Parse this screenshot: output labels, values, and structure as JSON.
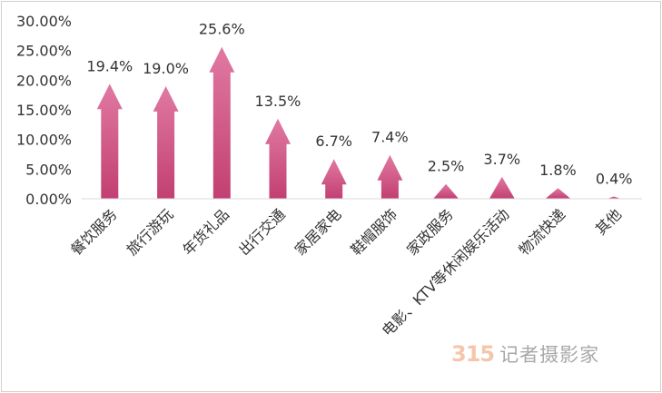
{
  "chart_data": {
    "type": "bar",
    "title": "",
    "xlabel": "",
    "ylabel": "",
    "categories": [
      "餐饮服务",
      "旅行游玩",
      "年货礼品",
      "出行交通",
      "家居家电",
      "鞋帽服饰",
      "家政服务",
      "电影、KTV等休闲娱乐活动",
      "物流快递",
      "其他"
    ],
    "values": [
      19.4,
      19.0,
      25.6,
      13.5,
      6.7,
      7.4,
      2.5,
      3.7,
      1.8,
      0.4
    ],
    "data_labels": [
      "19.4%",
      "19.0%",
      "25.6%",
      "13.5%",
      "6.7%",
      "7.4%",
      "2.5%",
      "3.7%",
      "1.8%",
      "0.4%"
    ],
    "ylim": [
      0,
      30
    ],
    "yticks": [
      0,
      5,
      10,
      15,
      20,
      25,
      30
    ],
    "ytick_labels": [
      "0.00%",
      "5.00%",
      "10.00%",
      "15.00%",
      "20.00%",
      "25.00%",
      "30.00%"
    ],
    "grid": false,
    "legend": "none",
    "colors": {
      "bar_top": "#e07aa2",
      "bar_bottom": "#c23f72",
      "axis": "#d9d9d9"
    }
  },
  "watermark": {
    "number": "315",
    "text": "记者摄影家"
  }
}
